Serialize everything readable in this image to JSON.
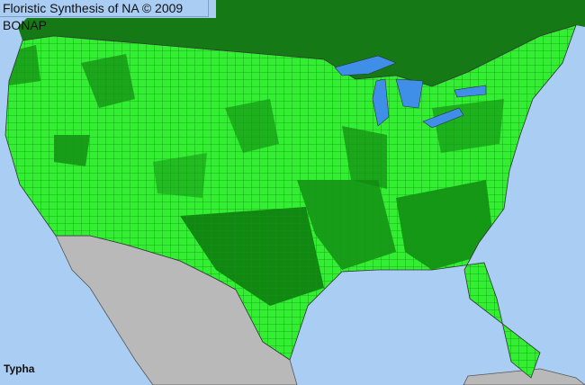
{
  "title": "Floristic Synthesis of NA © 2009 BONAP",
  "taxon": "Typha",
  "colors": {
    "ocean": "#a9cdf3",
    "canada": "#157a15",
    "present_county": "#33ee33",
    "native_dark_county": "#118811",
    "mexico": "#b9b9b9",
    "lakes": "#3f8fe8"
  }
}
